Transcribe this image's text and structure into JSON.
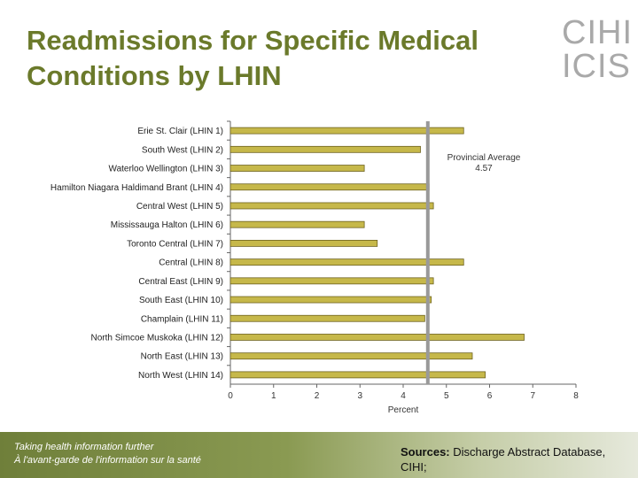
{
  "slide": {
    "title_line1": "Readmissions for Specific Medical",
    "title_line2": "Conditions by LHIN",
    "logo_line1": "CIHI",
    "logo_line2": "ICIS",
    "tagline_line1": "Taking health information further",
    "tagline_line2": "À l'avant-garde de l'information sur la santé",
    "sources_label": "Sources:",
    "sources_text": "Discharge Abstract Database, CIHI;"
  },
  "colors": {
    "title": "#6b7a2b",
    "bar": "#c6b84a",
    "bar_edge": "#6e6320",
    "avg_line": "#999999"
  },
  "chart_data": {
    "type": "bar",
    "orientation": "horizontal",
    "title": "",
    "xlabel": "Percent",
    "ylabel": "",
    "xlim": [
      0,
      8
    ],
    "xticks": [
      "0",
      "1",
      "2",
      "3",
      "4",
      "5",
      "6",
      "7",
      "8"
    ],
    "categories": [
      "Erie St. Clair (LHIN 1)",
      "South West (LHIN 2)",
      "Waterloo Wellington (LHIN 3)",
      "Hamilton Niagara Haldimand Brant (LHIN 4)",
      "Central West (LHIN 5)",
      "Mississauga Halton (LHIN 6)",
      "Toronto Central (LHIN 7)",
      "Central (LHIN 8)",
      "Central East (LHIN 9)",
      "South East (LHIN 10)",
      "Champlain (LHIN 11)",
      "North Simcoe Muskoka (LHIN 12)",
      "North East (LHIN 13)",
      "North West (LHIN 14)"
    ],
    "values": [
      5.4,
      4.4,
      3.1,
      4.6,
      4.7,
      3.1,
      3.4,
      5.4,
      4.7,
      4.65,
      4.5,
      6.8,
      5.6,
      5.9
    ],
    "reference_line": {
      "label": "Provincial Average",
      "value": 4.57,
      "value_label": "4.57"
    }
  }
}
